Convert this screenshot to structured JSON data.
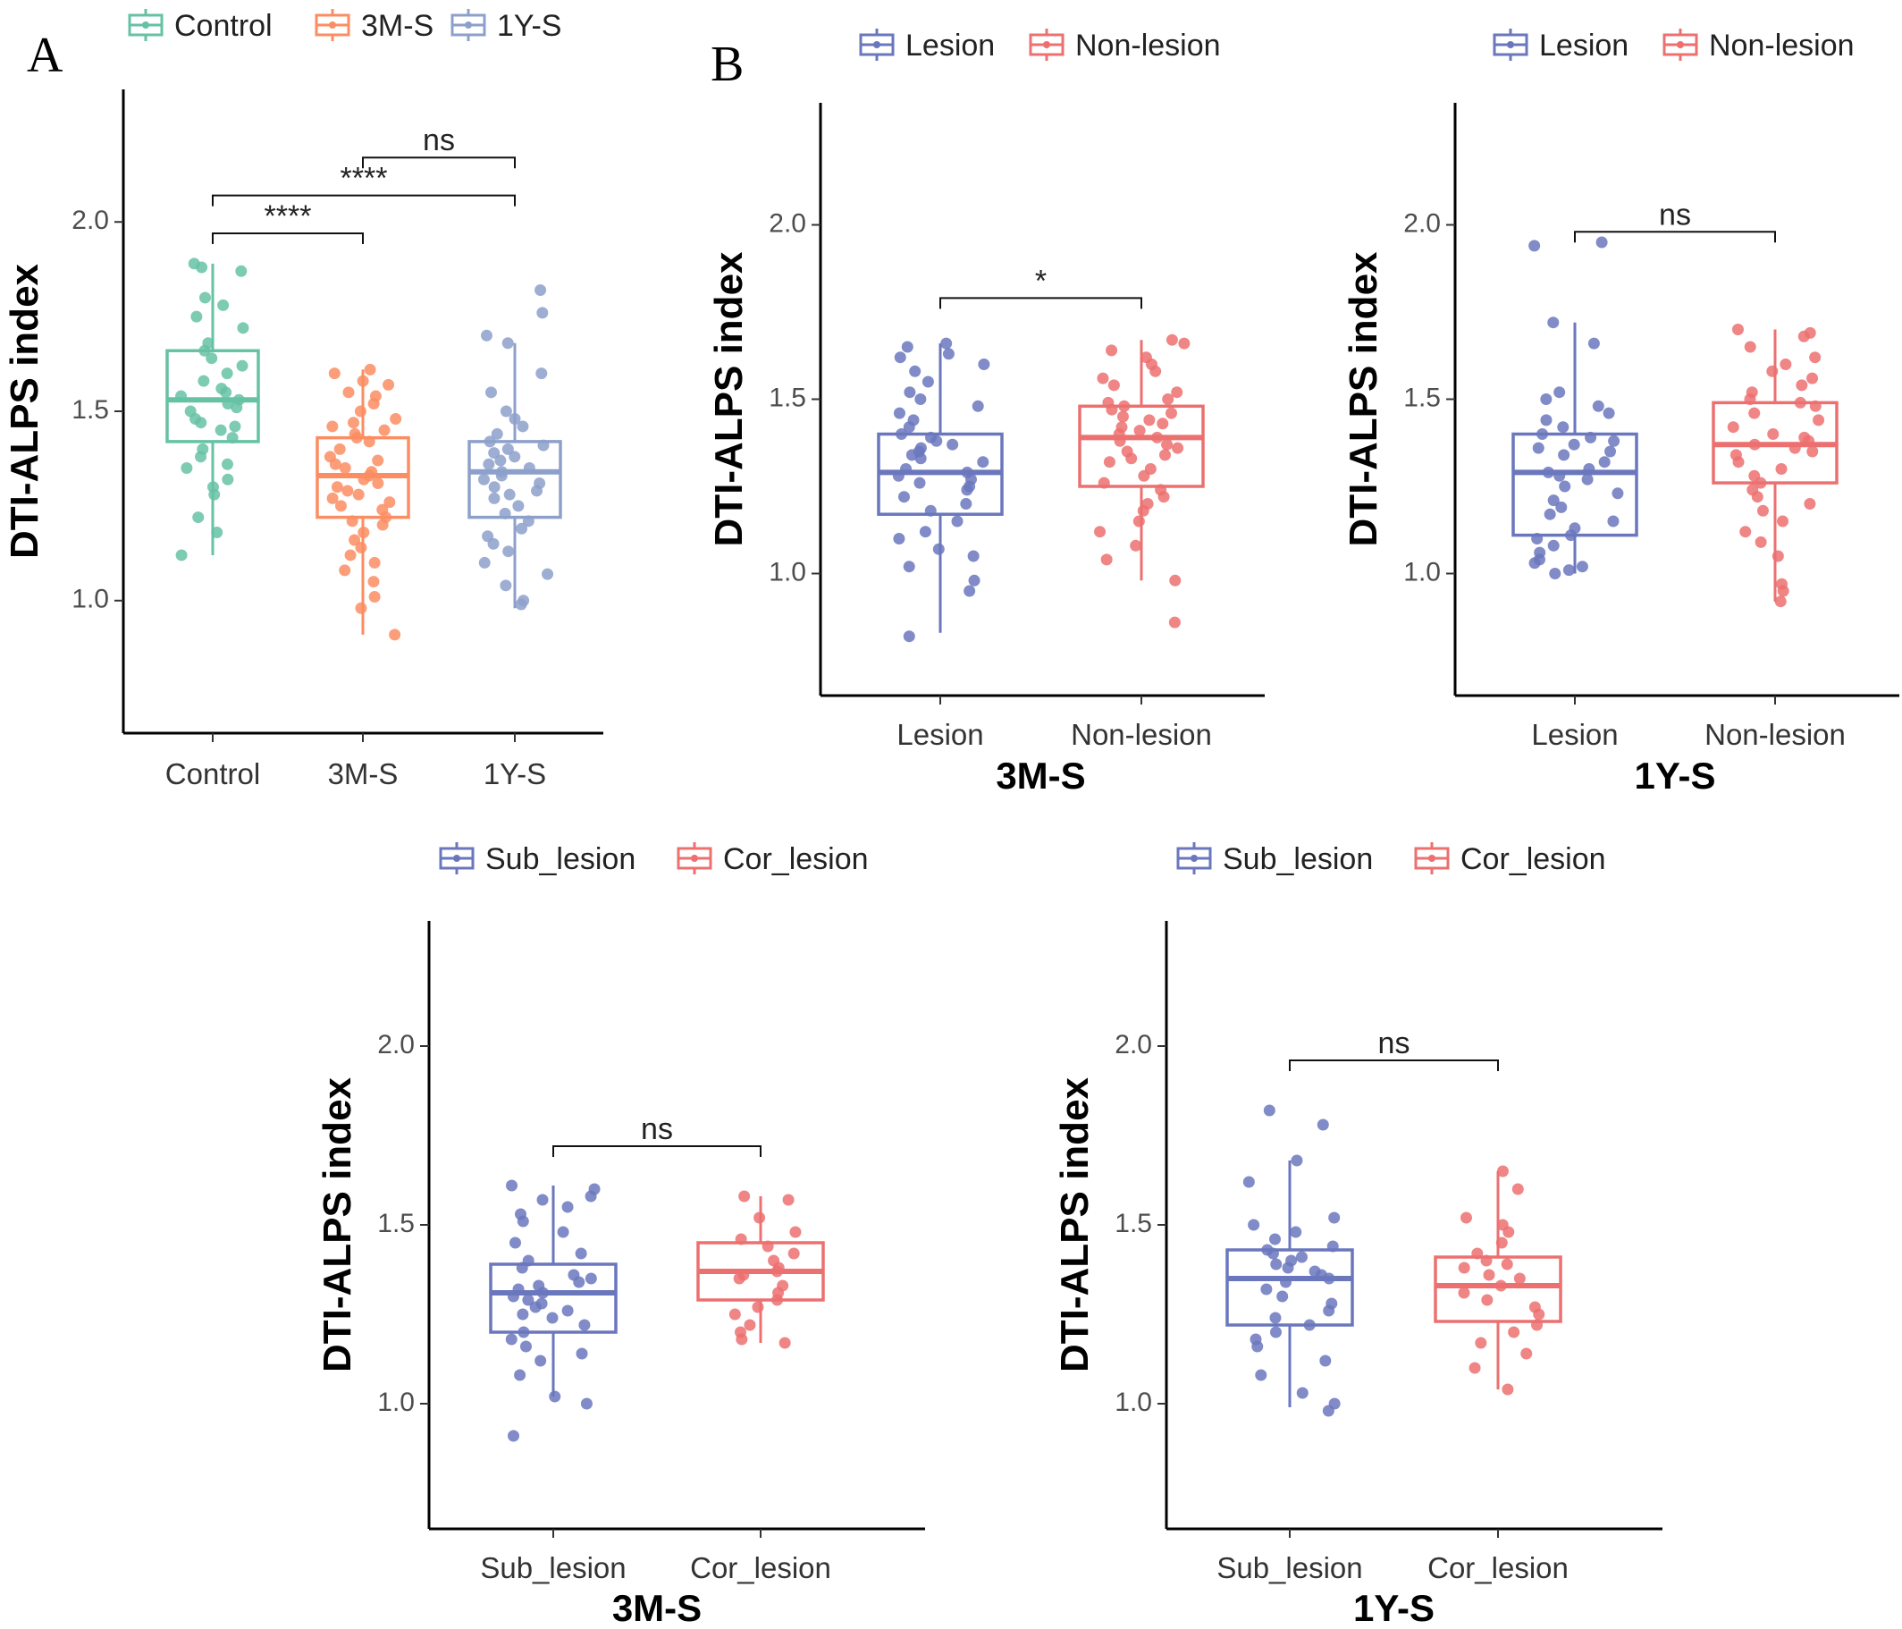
{
  "panel_labels": [
    "A",
    "B"
  ],
  "chart_data": [
    {
      "type": "boxplot",
      "panel": "A",
      "xlabel": "",
      "ylabel": "DTI-ALPS index",
      "ylim": [
        0.65,
        2.35
      ],
      "yticks": [
        "1.0",
        "1.5",
        "2.0"
      ],
      "categories": [
        "Control",
        "3M-S",
        "1Y-S"
      ],
      "legend": [
        "Control",
        "3M-S",
        "1Y-S"
      ],
      "colors": [
        "#66c2a5",
        "#fc8d62",
        "#8da0cb"
      ],
      "boxes": [
        {
          "q1": 1.42,
          "median": 1.53,
          "q3": 1.66,
          "whisker_low": 1.12,
          "whisker_high": 1.89,
          "points": [
            1.88,
            1.89,
            1.87,
            1.8,
            1.78,
            1.75,
            1.72,
            1.68,
            1.66,
            1.64,
            1.62,
            1.6,
            1.58,
            1.56,
            1.55,
            1.54,
            1.53,
            1.52,
            1.51,
            1.5,
            1.48,
            1.47,
            1.46,
            1.45,
            1.43,
            1.4,
            1.38,
            1.36,
            1.35,
            1.32,
            1.3,
            1.28,
            1.22,
            1.18,
            1.12
          ]
        },
        {
          "q1": 1.22,
          "median": 1.33,
          "q3": 1.43,
          "whisker_low": 0.91,
          "whisker_high": 1.61,
          "points": [
            1.61,
            1.6,
            1.58,
            1.57,
            1.55,
            1.54,
            1.52,
            1.5,
            1.48,
            1.47,
            1.46,
            1.45,
            1.44,
            1.43,
            1.42,
            1.4,
            1.38,
            1.37,
            1.36,
            1.35,
            1.34,
            1.33,
            1.32,
            1.31,
            1.3,
            1.29,
            1.28,
            1.27,
            1.26,
            1.25,
            1.24,
            1.22,
            1.21,
            1.2,
            1.18,
            1.16,
            1.14,
            1.12,
            1.1,
            1.08,
            1.05,
            1.01,
            0.98,
            0.91
          ]
        },
        {
          "q1": 1.22,
          "median": 1.34,
          "q3": 1.42,
          "whisker_low": 0.98,
          "whisker_high": 1.68,
          "points": [
            1.82,
            1.76,
            1.7,
            1.68,
            1.6,
            1.55,
            1.5,
            1.48,
            1.46,
            1.44,
            1.42,
            1.41,
            1.4,
            1.39,
            1.38,
            1.37,
            1.36,
            1.35,
            1.34,
            1.33,
            1.32,
            1.31,
            1.3,
            1.29,
            1.28,
            1.27,
            1.25,
            1.23,
            1.21,
            1.19,
            1.17,
            1.15,
            1.13,
            1.1,
            1.07,
            1.04,
            1.0,
            0.99
          ]
        }
      ],
      "comparisons": [
        {
          "from": 1,
          "to": 2,
          "y": 2.17,
          "label": "ns"
        },
        {
          "from": 0,
          "to": 2,
          "y": 2.07,
          "label": "****"
        },
        {
          "from": 0,
          "to": 1,
          "y": 1.97,
          "label": "****"
        }
      ]
    },
    {
      "type": "boxplot",
      "panel": "B",
      "xlabel": "3M-S",
      "ylabel": "DTI-ALPS index",
      "ylim": [
        0.65,
        2.35
      ],
      "yticks": [
        "1.0",
        "1.5",
        "2.0"
      ],
      "categories": [
        "Lesion",
        "Non-lesion"
      ],
      "legend": [
        "Lesion",
        "Non-lesion"
      ],
      "colors": [
        "#6a77bd",
        "#ec7070"
      ],
      "boxes": [
        {
          "q1": 1.17,
          "median": 1.29,
          "q3": 1.4,
          "whisker_low": 0.83,
          "whisker_high": 1.66,
          "points": [
            1.66,
            1.65,
            1.63,
            1.62,
            1.6,
            1.58,
            1.55,
            1.52,
            1.5,
            1.48,
            1.46,
            1.44,
            1.42,
            1.4,
            1.39,
            1.38,
            1.37,
            1.36,
            1.35,
            1.34,
            1.33,
            1.32,
            1.3,
            1.29,
            1.28,
            1.27,
            1.26,
            1.25,
            1.24,
            1.22,
            1.2,
            1.18,
            1.15,
            1.12,
            1.1,
            1.07,
            1.05,
            1.02,
            0.98,
            0.95,
            0.82
          ]
        },
        {
          "q1": 1.25,
          "median": 1.39,
          "q3": 1.48,
          "whisker_low": 0.98,
          "whisker_high": 1.67,
          "points": [
            1.67,
            1.66,
            1.64,
            1.62,
            1.6,
            1.58,
            1.56,
            1.54,
            1.52,
            1.5,
            1.49,
            1.48,
            1.47,
            1.46,
            1.45,
            1.44,
            1.43,
            1.42,
            1.41,
            1.4,
            1.39,
            1.38,
            1.37,
            1.36,
            1.35,
            1.34,
            1.33,
            1.32,
            1.3,
            1.28,
            1.26,
            1.24,
            1.22,
            1.2,
            1.18,
            1.15,
            1.12,
            1.08,
            1.04,
            0.98,
            0.86
          ]
        }
      ],
      "comparisons": [
        {
          "from": 0,
          "to": 1,
          "y": 1.79,
          "label": "*"
        }
      ]
    },
    {
      "type": "boxplot",
      "panel": "B",
      "xlabel": "1Y-S",
      "ylabel": "DTI-ALPS index",
      "ylim": [
        0.65,
        2.35
      ],
      "yticks": [
        "1.0",
        "1.5",
        "2.0"
      ],
      "categories": [
        "Lesion",
        "Non-lesion"
      ],
      "legend": [
        "Lesion",
        "Non-lesion"
      ],
      "colors": [
        "#6a77bd",
        "#ec7070"
      ],
      "boxes": [
        {
          "q1": 1.11,
          "median": 1.29,
          "q3": 1.4,
          "whisker_low": 1.0,
          "whisker_high": 1.72,
          "points": [
            1.95,
            1.94,
            1.72,
            1.66,
            1.52,
            1.5,
            1.48,
            1.46,
            1.44,
            1.42,
            1.4,
            1.39,
            1.38,
            1.37,
            1.36,
            1.35,
            1.34,
            1.32,
            1.3,
            1.29,
            1.28,
            1.27,
            1.25,
            1.23,
            1.21,
            1.19,
            1.17,
            1.15,
            1.13,
            1.11,
            1.1,
            1.08,
            1.06,
            1.04,
            1.03,
            1.02,
            1.01,
            1.0
          ]
        },
        {
          "q1": 1.26,
          "median": 1.37,
          "q3": 1.49,
          "whisker_low": 0.92,
          "whisker_high": 1.7,
          "points": [
            1.7,
            1.69,
            1.68,
            1.65,
            1.62,
            1.6,
            1.58,
            1.56,
            1.54,
            1.52,
            1.5,
            1.49,
            1.48,
            1.46,
            1.44,
            1.42,
            1.4,
            1.39,
            1.38,
            1.37,
            1.36,
            1.35,
            1.34,
            1.32,
            1.3,
            1.28,
            1.26,
            1.24,
            1.22,
            1.2,
            1.18,
            1.15,
            1.12,
            1.09,
            1.05,
            0.97,
            0.95,
            0.92
          ]
        }
      ],
      "comparisons": [
        {
          "from": 0,
          "to": 1,
          "y": 1.98,
          "label": "ns"
        }
      ]
    },
    {
      "type": "boxplot",
      "panel": "",
      "xlabel": "3M-S",
      "ylabel": "DTI-ALPS index",
      "ylim": [
        0.65,
        2.35
      ],
      "yticks": [
        "1.0",
        "1.5",
        "2.0"
      ],
      "categories": [
        "Sub_lesion",
        "Cor_lesion"
      ],
      "legend": [
        "Sub_lesion",
        "Cor_lesion"
      ],
      "colors": [
        "#6a77bd",
        "#ec7070"
      ],
      "boxes": [
        {
          "q1": 1.2,
          "median": 1.31,
          "q3": 1.39,
          "whisker_low": 1.02,
          "whisker_high": 1.61,
          "points": [
            1.61,
            1.6,
            1.58,
            1.57,
            1.55,
            1.53,
            1.51,
            1.48,
            1.45,
            1.42,
            1.4,
            1.38,
            1.36,
            1.35,
            1.34,
            1.33,
            1.32,
            1.31,
            1.3,
            1.29,
            1.28,
            1.27,
            1.26,
            1.25,
            1.24,
            1.22,
            1.2,
            1.18,
            1.16,
            1.14,
            1.12,
            1.08,
            1.02,
            1.0,
            0.91
          ]
        },
        {
          "q1": 1.29,
          "median": 1.37,
          "q3": 1.45,
          "whisker_low": 1.17,
          "whisker_high": 1.58,
          "points": [
            1.58,
            1.57,
            1.52,
            1.48,
            1.46,
            1.44,
            1.42,
            1.4,
            1.38,
            1.37,
            1.36,
            1.35,
            1.33,
            1.31,
            1.29,
            1.27,
            1.25,
            1.22,
            1.2,
            1.18,
            1.17
          ]
        }
      ],
      "comparisons": [
        {
          "from": 0,
          "to": 1,
          "y": 1.72,
          "label": "ns"
        }
      ]
    },
    {
      "type": "boxplot",
      "panel": "",
      "xlabel": "1Y-S",
      "ylabel": "DTI-ALPS index",
      "ylim": [
        0.65,
        2.35
      ],
      "yticks": [
        "1.0",
        "1.5",
        "2.0"
      ],
      "categories": [
        "Sub_lesion",
        "Cor_lesion"
      ],
      "legend": [
        "Sub_lesion",
        "Cor_lesion"
      ],
      "colors": [
        "#6a77bd",
        "#ec7070"
      ],
      "boxes": [
        {
          "q1": 1.22,
          "median": 1.35,
          "q3": 1.43,
          "whisker_low": 0.99,
          "whisker_high": 1.68,
          "points": [
            1.82,
            1.78,
            1.68,
            1.62,
            1.52,
            1.5,
            1.48,
            1.46,
            1.44,
            1.43,
            1.42,
            1.41,
            1.4,
            1.39,
            1.38,
            1.37,
            1.36,
            1.35,
            1.34,
            1.32,
            1.3,
            1.28,
            1.26,
            1.24,
            1.22,
            1.2,
            1.18,
            1.16,
            1.12,
            1.08,
            1.03,
            1.0,
            0.98
          ]
        },
        {
          "q1": 1.23,
          "median": 1.33,
          "q3": 1.41,
          "whisker_low": 1.04,
          "whisker_high": 1.65,
          "points": [
            1.65,
            1.6,
            1.52,
            1.5,
            1.48,
            1.45,
            1.42,
            1.4,
            1.39,
            1.38,
            1.36,
            1.35,
            1.33,
            1.31,
            1.29,
            1.27,
            1.25,
            1.22,
            1.2,
            1.17,
            1.14,
            1.1,
            1.04
          ]
        }
      ],
      "comparisons": [
        {
          "from": 0,
          "to": 1,
          "y": 1.96,
          "label": "ns"
        }
      ]
    }
  ]
}
